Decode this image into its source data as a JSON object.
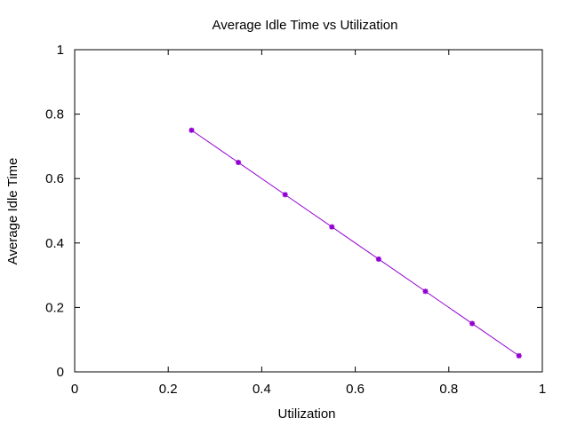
{
  "chart_data": {
    "type": "line",
    "title": "Average Idle Time vs Utilization",
    "xlabel": "Utilization",
    "ylabel": "Average Idle Time",
    "xlim": [
      0,
      1
    ],
    "ylim": [
      0,
      1
    ],
    "xticks": [
      "0",
      "0.2",
      "0.4",
      "0.6",
      "0.8",
      "1"
    ],
    "yticks": [
      "0",
      "0.2",
      "0.4",
      "0.6",
      "0.8",
      "1"
    ],
    "grid": false,
    "legend": "none",
    "series": [
      {
        "color": "#9400d3",
        "marker": "star",
        "x": [
          0.25,
          0.35,
          0.45,
          0.55,
          0.65,
          0.75,
          0.85,
          0.95
        ],
        "y": [
          0.75,
          0.65,
          0.55,
          0.45,
          0.35,
          0.25,
          0.15,
          0.05
        ]
      }
    ]
  }
}
